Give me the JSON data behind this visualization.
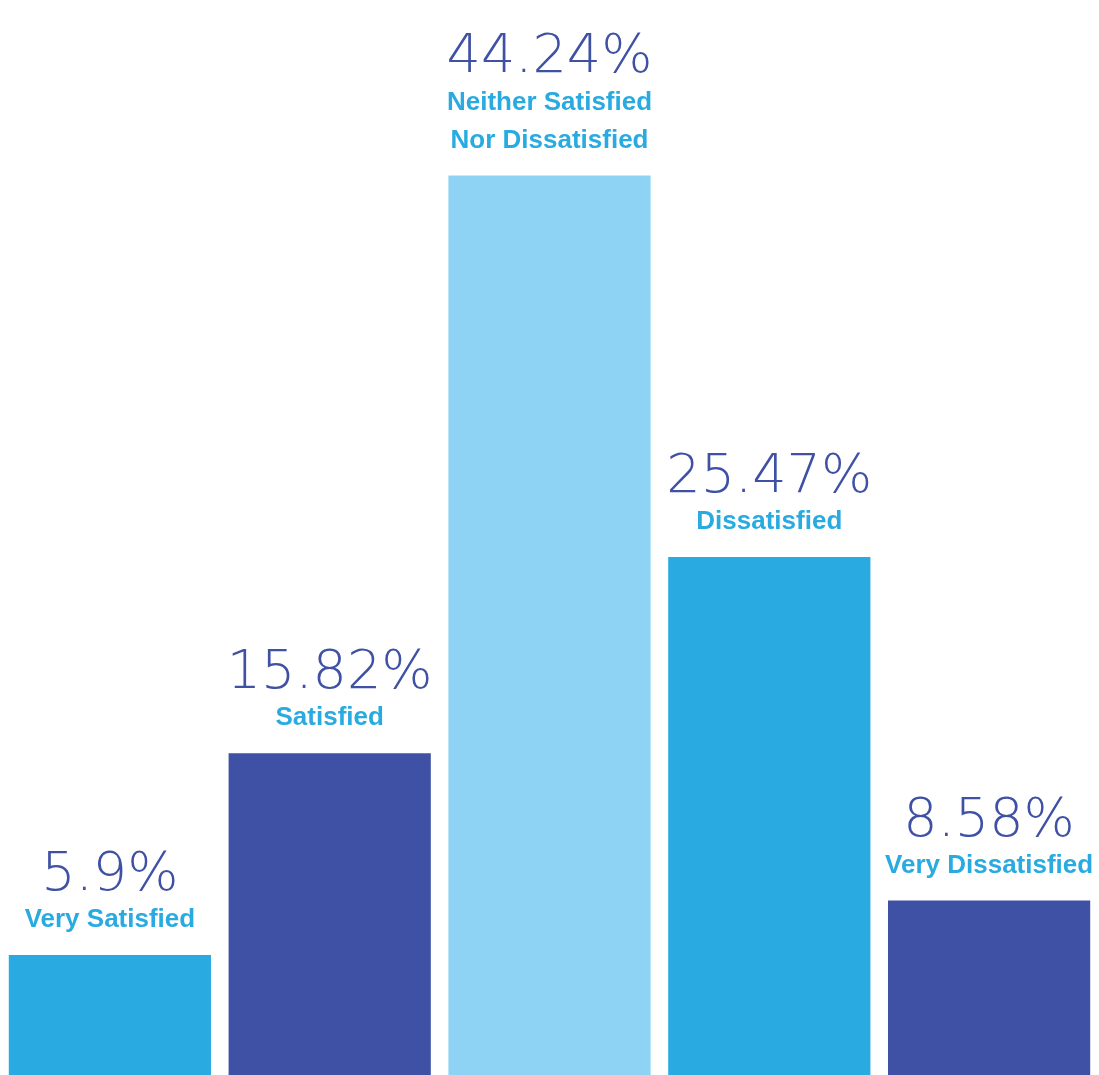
{
  "chart_data": {
    "type": "bar",
    "categories": [
      "Very Satisfied",
      "Satisfied",
      "Neither Satisfied Nor Dissatisfied",
      "Dissatisfied",
      "Very Dissatisfied"
    ],
    "values": [
      5.9,
      15.82,
      44.24,
      25.47,
      8.58
    ],
    "colors": [
      "#29abe2",
      "#3f51a5",
      "#8fd3f4",
      "#29abe2",
      "#3f51a5"
    ],
    "value_labels": [
      "5.9%",
      "15.82%",
      "44.24%",
      "25.47%",
      "8.58%"
    ],
    "legend": false
  }
}
